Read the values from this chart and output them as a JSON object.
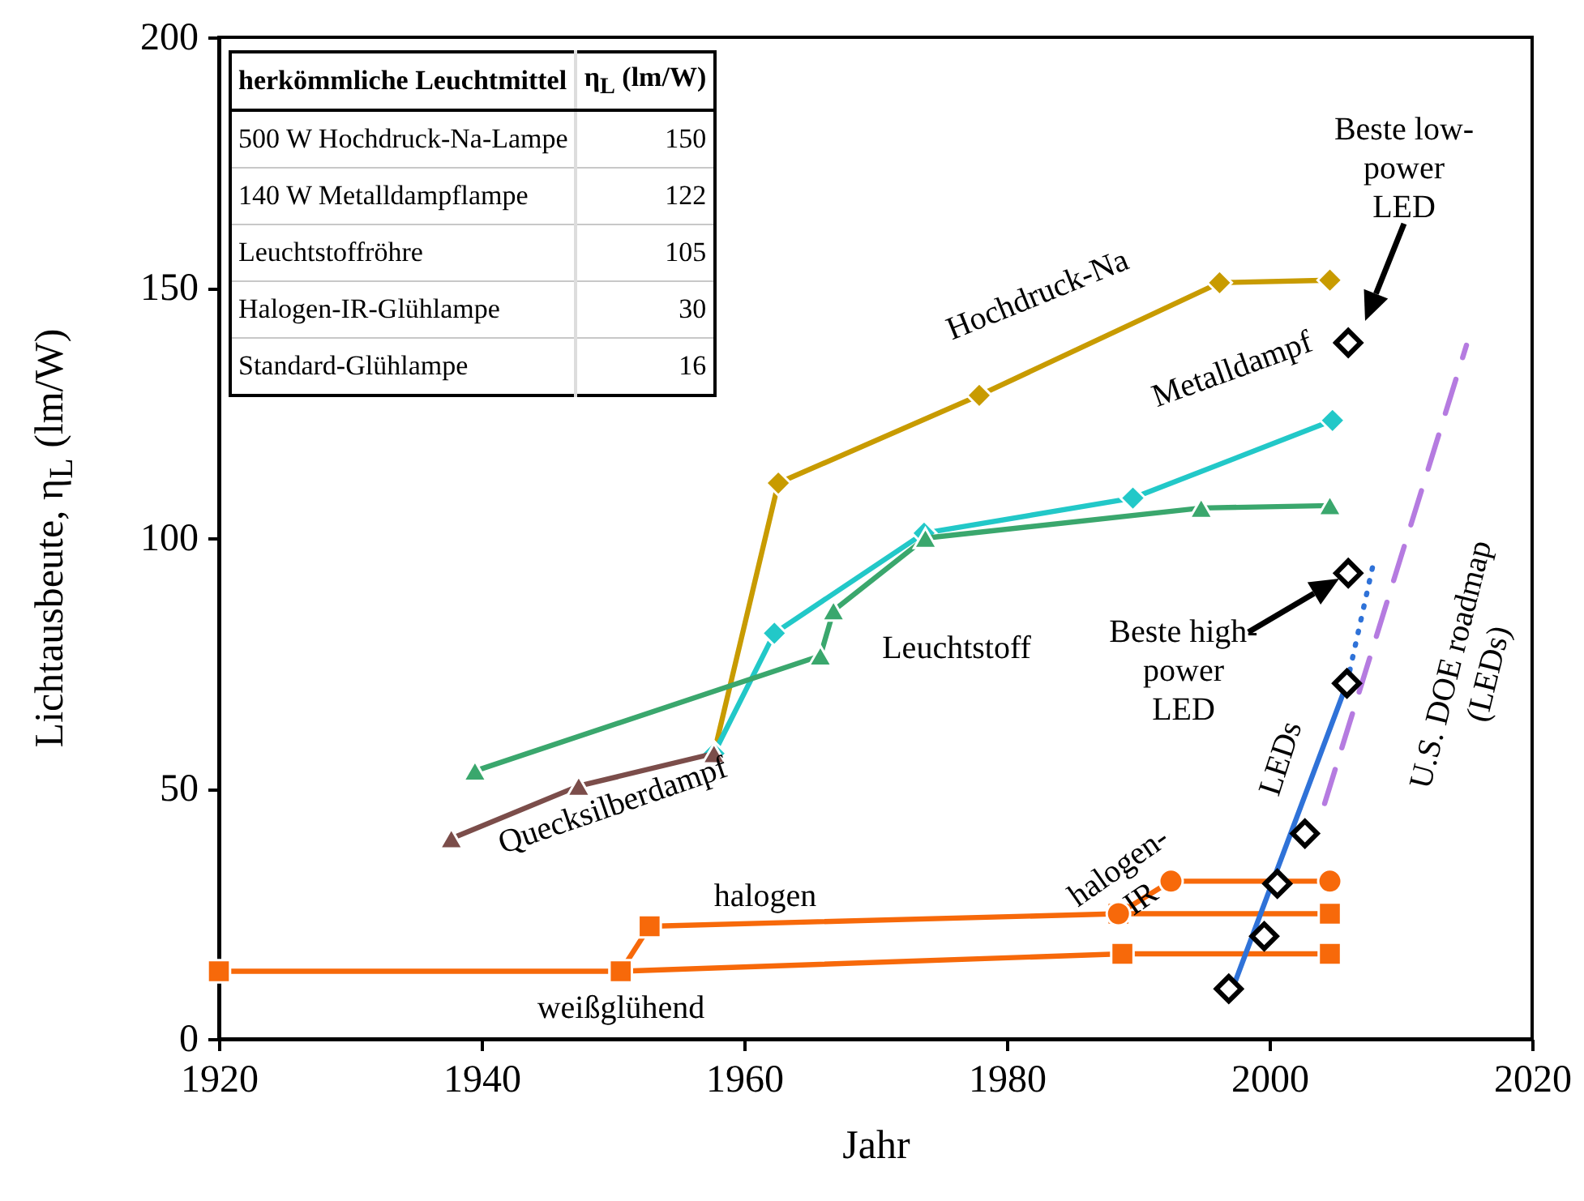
{
  "chart_data": {
    "type": "line",
    "xlabel": "Jahr",
    "ylabel": "Lichtausbeute, η$_{L}$ (lm/W)",
    "xlim": [
      1920,
      2020
    ],
    "xticks": [
      1920,
      1940,
      1960,
      1980,
      2000,
      2020
    ],
    "ylim": [
      0,
      200
    ],
    "yticks": [
      0,
      50,
      100,
      150,
      200
    ],
    "grid": false,
    "series": [
      {
        "color": "#c89b00",
        "marker": "diamond",
        "x": [
          1957.7,
          1962.6,
          1977.9,
          1996.2,
          2004.6
        ],
        "values": [
          57,
          111,
          128.5,
          151,
          151.5
        ]
      },
      {
        "color": "#22c8c8",
        "marker": "diamond",
        "x": [
          1957.7,
          1962.3,
          1973.7,
          1989.6,
          2004.8
        ],
        "values": [
          57,
          81,
          101,
          108,
          123.5
        ]
      },
      {
        "color": "#3aa76d",
        "marker": "triangle",
        "x": [
          1939.5,
          1965.8,
          1966.8,
          1973.8,
          1994.8,
          2004.6
        ],
        "values": [
          53.5,
          76.5,
          85.5,
          100,
          106,
          106.5
        ]
      },
      {
        "color": "#7b4d4a",
        "marker": "triangle",
        "x": [
          1937.7,
          1947.4,
          1957.7
        ],
        "values": [
          40,
          50.5,
          57
        ]
      },
      {
        "color": "#f7690a",
        "marker": "square",
        "x": [
          1920,
          1950.6,
          1988.8,
          2004.6
        ],
        "values": [
          13.5,
          13.5,
          17,
          17
        ]
      },
      {
        "color": "#f7690a",
        "marker": "square",
        "x": [
          1950.6,
          1952.8,
          1988.5,
          2004.6
        ],
        "values": [
          13.5,
          22.5,
          25,
          25
        ]
      },
      {
        "color": "#f7690a",
        "marker": "circle",
        "x": [
          1988.5,
          1992.5,
          2004.6
        ],
        "values": [
          25,
          31.5,
          31.5
        ]
      },
      {
        "color": "#2f72d8",
        "marker": "none",
        "x": [
          1996.9,
          2005.9
        ],
        "values": [
          8,
          71
        ]
      },
      {
        "color": "#2f72d8",
        "marker": "none",
        "line_style": "dotted",
        "x": [
          2005.9,
          2008
        ],
        "values": [
          71,
          96
        ]
      },
      {
        "color": "#b57be0",
        "marker": "none",
        "line_style": "dashed",
        "x": [
          2004.2,
          2015
        ],
        "values": [
          47,
          138.5
        ]
      },
      {
        "type": "scatter",
        "color": "#000000",
        "marker": "diamond",
        "x": [
          1996.9,
          1999.6,
          2000.6,
          2002.7,
          2005.9,
          2006,
          2006
        ],
        "values": [
          10,
          20.5,
          31,
          41,
          71,
          93,
          139
        ]
      }
    ],
    "annotations": [
      "Hochdruck-Na",
      "Metalldampf",
      "Leuchtstoff",
      "Quecksilberdampf",
      "halogen",
      "weißglühend",
      "halogen-\nIR",
      "LEDs",
      "U.S. DOE roadmap\n(LEDs)",
      "Beste low-\npower\nLED",
      "Beste high-\npower\nLED",
      "herkömmliche Leuchtmittel",
      "η$_{L}$ (lm/W)",
      "500 W Hochdruck-Na-Lampe",
      "150",
      "140 W Metalldampflampe",
      "122",
      "Leuchtstoffröhre",
      "105",
      "Halogen-IR-Glühlampe",
      "30",
      "Standard-Glühlampe",
      "16"
    ]
  }
}
